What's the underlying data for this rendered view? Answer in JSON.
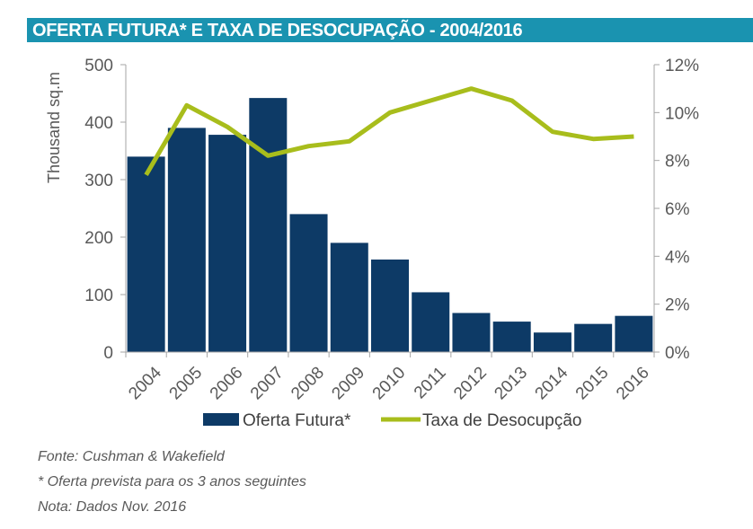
{
  "title": "OFERTA FUTURA* E TAXA DE DESOCUPAÇÃO - 2004/2016",
  "notes": {
    "source": "Fonte: Cushman & Wakefield",
    "footnote": "* Oferta prevista para os 3 anos seguintes",
    "date_note": "Nota: Dados Nov. 2016"
  },
  "colors": {
    "bars": "#0d3a66",
    "line": "#a8bd1c",
    "title_bg": "#1a93b0"
  },
  "chart_data": {
    "type": "bar",
    "categories": [
      "2004",
      "2005",
      "2006",
      "2007",
      "2008",
      "2009",
      "2010",
      "2011",
      "2012",
      "2013",
      "2014",
      "2015",
      "2016"
    ],
    "series": [
      {
        "name": "Oferta Futura*",
        "type": "bar",
        "axis": "left",
        "values": [
          340,
          390,
          378,
          442,
          240,
          190,
          161,
          104,
          68,
          53,
          34,
          49,
          63
        ]
      },
      {
        "name": "Taxa de Desocupção",
        "type": "line",
        "axis": "right",
        "values": [
          7.4,
          10.3,
          9.4,
          8.2,
          8.6,
          8.8,
          10.0,
          10.5,
          11.0,
          10.5,
          9.2,
          8.9,
          9.0
        ]
      }
    ],
    "ylabel": "Thousand  sq.m",
    "ylim": [
      0,
      500
    ],
    "yticks": [
      "0",
      "100",
      "200",
      "300",
      "400",
      "500"
    ],
    "y2lim": [
      0,
      12
    ],
    "y2ticks": [
      "0%",
      "2%",
      "4%",
      "6%",
      "8%",
      "10%",
      "12%"
    ],
    "legend_position": "bottom",
    "grid": false
  }
}
